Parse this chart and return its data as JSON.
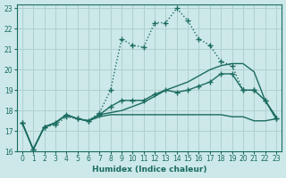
{
  "xlabel": "Humidex (Indice chaleur)",
  "xlim": [
    -0.5,
    23.5
  ],
  "ylim": [
    16,
    23.2
  ],
  "yticks": [
    16,
    17,
    18,
    19,
    20,
    21,
    22,
    23
  ],
  "xticks": [
    0,
    1,
    2,
    3,
    4,
    5,
    6,
    7,
    8,
    9,
    10,
    11,
    12,
    13,
    14,
    15,
    16,
    17,
    18,
    19,
    20,
    21,
    22,
    23
  ],
  "bg_color": "#cce8e8",
  "grid_color": "#b0d0d0",
  "line_color": "#1a6b60",
  "lines": [
    {
      "x": [
        0,
        1,
        2,
        3,
        4,
        5,
        6,
        7,
        8,
        9,
        10,
        11,
        12,
        13,
        14,
        15,
        16,
        17,
        18,
        19,
        20,
        21,
        22,
        23
      ],
      "y": [
        17.4,
        16.1,
        17.2,
        17.3,
        17.7,
        17.6,
        17.5,
        17.9,
        19.0,
        21.5,
        21.2,
        21.1,
        22.3,
        22.3,
        23.0,
        22.4,
        21.5,
        21.2,
        20.4,
        20.2,
        19.0,
        19.0,
        18.5,
        17.6
      ],
      "marker": "+",
      "markersize": 4,
      "linestyle": ":",
      "linewidth": 1.0
    },
    {
      "x": [
        0,
        1,
        2,
        3,
        4,
        5,
        6,
        7,
        8,
        9,
        10,
        11,
        12,
        13,
        14,
        15,
        16,
        17,
        18,
        19,
        20,
        21,
        22,
        23
      ],
      "y": [
        17.4,
        16.1,
        17.2,
        17.4,
        17.8,
        17.6,
        17.5,
        17.8,
        18.2,
        18.5,
        18.5,
        18.5,
        18.8,
        19.0,
        18.9,
        19.0,
        19.2,
        19.4,
        19.8,
        19.8,
        19.0,
        19.0,
        18.5,
        17.6
      ],
      "marker": "+",
      "markersize": 4,
      "linestyle": "-",
      "linewidth": 1.0
    },
    {
      "x": [
        0,
        1,
        2,
        3,
        4,
        5,
        6,
        7,
        8,
        9,
        10,
        11,
        12,
        13,
        14,
        15,
        16,
        17,
        18,
        19,
        20,
        21,
        22,
        23
      ],
      "y": [
        17.4,
        16.1,
        17.2,
        17.4,
        17.8,
        17.6,
        17.5,
        17.8,
        17.9,
        18.0,
        18.2,
        18.4,
        18.7,
        19.0,
        19.2,
        19.4,
        19.7,
        20.0,
        20.2,
        20.3,
        20.3,
        19.9,
        18.5,
        17.7
      ],
      "marker": "",
      "markersize": 0,
      "linestyle": "-",
      "linewidth": 1.0
    },
    {
      "x": [
        0,
        1,
        2,
        3,
        4,
        5,
        6,
        7,
        8,
        9,
        10,
        11,
        12,
        13,
        14,
        15,
        16,
        17,
        18,
        19,
        20,
        21,
        22,
        23
      ],
      "y": [
        17.4,
        16.1,
        17.2,
        17.4,
        17.8,
        17.6,
        17.5,
        17.7,
        17.8,
        17.8,
        17.8,
        17.8,
        17.8,
        17.8,
        17.8,
        17.8,
        17.8,
        17.8,
        17.8,
        17.7,
        17.7,
        17.5,
        17.5,
        17.6
      ],
      "marker": "",
      "markersize": 0,
      "linestyle": "-",
      "linewidth": 1.0
    }
  ]
}
